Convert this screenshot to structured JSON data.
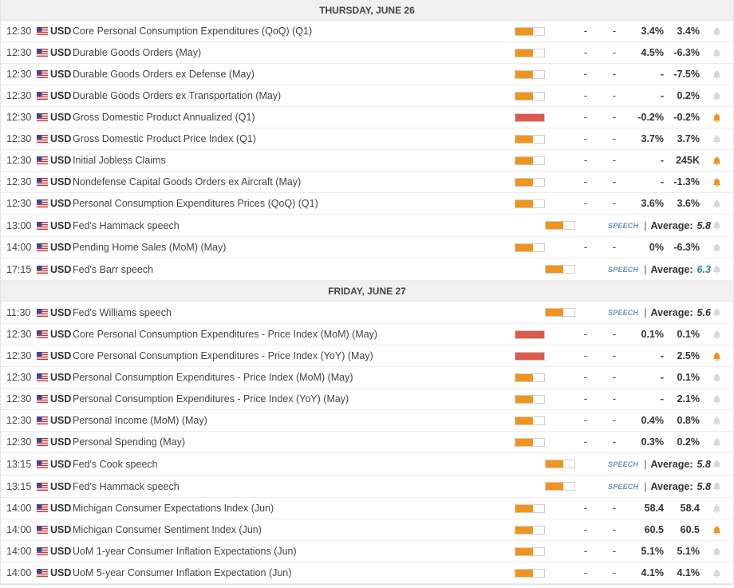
{
  "colors": {
    "impact_medium": "#f0941e",
    "impact_high": "#dc5a4c",
    "bell_active": "#f0941e",
    "bell_inactive": "#d8d8d8",
    "speech_tag": "#6a93b8",
    "teal_value": "#2a8a8a"
  },
  "icons": {
    "flag": "us-flag-icon",
    "bell": "bell-icon"
  },
  "days": [
    {
      "title": "THURSDAY, JUNE 26",
      "events": [
        {
          "time": "12:30",
          "currency": "USD",
          "name": "Core Personal Consumption Expenditures (QoQ) (Q1)",
          "impact": "medium",
          "actual": "-",
          "consensus": "-",
          "forecast": "3.4%",
          "previous": "3.4%",
          "alert": false
        },
        {
          "time": "12:30",
          "currency": "USD",
          "name": "Durable Goods Orders (May)",
          "impact": "medium",
          "actual": "-",
          "consensus": "-",
          "forecast": "4.5%",
          "previous": "-6.3%",
          "alert": false
        },
        {
          "time": "12:30",
          "currency": "USD",
          "name": "Durable Goods Orders ex Defense (May)",
          "impact": "medium",
          "actual": "-",
          "consensus": "-",
          "forecast": "-",
          "previous": "-7.5%",
          "alert": false
        },
        {
          "time": "12:30",
          "currency": "USD",
          "name": "Durable Goods Orders ex Transportation (May)",
          "impact": "medium",
          "actual": "-",
          "consensus": "-",
          "forecast": "-",
          "previous": "0.2%",
          "alert": false
        },
        {
          "time": "12:30",
          "currency": "USD",
          "name": "Gross Domestic Product Annualized (Q1)",
          "impact": "high",
          "actual": "-",
          "consensus": "-",
          "forecast": "-0.2%",
          "previous": "-0.2%",
          "alert": true
        },
        {
          "time": "12:30",
          "currency": "USD",
          "name": "Gross Domestic Product Price Index (Q1)",
          "impact": "medium",
          "actual": "-",
          "consensus": "-",
          "forecast": "3.7%",
          "previous": "3.7%",
          "alert": false
        },
        {
          "time": "12:30",
          "currency": "USD",
          "name": "Initial Jobless Claims",
          "impact": "medium",
          "actual": "-",
          "consensus": "-",
          "forecast": "-",
          "previous": "245K",
          "alert": true
        },
        {
          "time": "12:30",
          "currency": "USD",
          "name": "Nondefense Capital Goods Orders ex Aircraft (May)",
          "impact": "medium",
          "actual": "-",
          "consensus": "-",
          "forecast": "-",
          "previous": "-1.3%",
          "alert": true
        },
        {
          "time": "12:30",
          "currency": "USD",
          "name": "Personal Consumption Expenditures Prices (QoQ) (Q1)",
          "impact": "medium",
          "actual": "-",
          "consensus": "-",
          "forecast": "3.6%",
          "previous": "3.6%",
          "alert": false
        },
        {
          "time": "13:00",
          "currency": "USD",
          "name": "Fed's Hammack speech",
          "impact": "medium",
          "speech": true,
          "speech_tag": "SPEECH",
          "avg_label": "Average:",
          "avg_value": "5.8",
          "avg_teal": false,
          "alert": false
        },
        {
          "time": "14:00",
          "currency": "USD",
          "name": "Pending Home Sales (MoM) (May)",
          "impact": "medium",
          "actual": "-",
          "consensus": "-",
          "forecast": "0%",
          "previous": "-6.3%",
          "alert": false
        },
        {
          "time": "17:15",
          "currency": "USD",
          "name": "Fed's Barr speech",
          "impact": "medium",
          "speech": true,
          "speech_tag": "SPEECH",
          "avg_label": "Average:",
          "avg_value": "6.3",
          "avg_teal": true,
          "alert": false
        }
      ]
    },
    {
      "title": "FRIDAY, JUNE 27",
      "events": [
        {
          "time": "11:30",
          "currency": "USD",
          "name": "Fed's Williams speech",
          "impact": "medium",
          "speech": true,
          "speech_tag": "SPEECH",
          "avg_label": "Average:",
          "avg_value": "5.6",
          "avg_teal": false,
          "alert": false
        },
        {
          "time": "12:30",
          "currency": "USD",
          "name": "Core Personal Consumption Expenditures - Price Index (MoM) (May)",
          "impact": "high",
          "actual": "-",
          "consensus": "-",
          "forecast": "0.1%",
          "previous": "0.1%",
          "alert": false
        },
        {
          "time": "12:30",
          "currency": "USD",
          "name": "Core Personal Consumption Expenditures - Price Index (YoY) (May)",
          "impact": "high",
          "actual": "-",
          "consensus": "-",
          "forecast": "-",
          "previous": "2.5%",
          "alert": true
        },
        {
          "time": "12:30",
          "currency": "USD",
          "name": "Personal Consumption Expenditures - Price Index (MoM) (May)",
          "impact": "medium",
          "actual": "-",
          "consensus": "-",
          "forecast": "-",
          "previous": "0.1%",
          "alert": false
        },
        {
          "time": "12:30",
          "currency": "USD",
          "name": "Personal Consumption Expenditures - Price Index (YoY) (May)",
          "impact": "medium",
          "actual": "-",
          "consensus": "-",
          "forecast": "-",
          "previous": "2.1%",
          "alert": false
        },
        {
          "time": "12:30",
          "currency": "USD",
          "name": "Personal Income (MoM) (May)",
          "impact": "medium",
          "actual": "-",
          "consensus": "-",
          "forecast": "0.4%",
          "previous": "0.8%",
          "alert": false
        },
        {
          "time": "12:30",
          "currency": "USD",
          "name": "Personal Spending (May)",
          "impact": "medium",
          "actual": "-",
          "consensus": "-",
          "forecast": "0.3%",
          "previous": "0.2%",
          "alert": false
        },
        {
          "time": "13:15",
          "currency": "USD",
          "name": "Fed's Cook speech",
          "impact": "medium",
          "speech": true,
          "speech_tag": "SPEECH",
          "avg_label": "Average:",
          "avg_value": "5.8",
          "avg_teal": false,
          "alert": false
        },
        {
          "time": "13:15",
          "currency": "USD",
          "name": "Fed's Hammack speech",
          "impact": "medium",
          "speech": true,
          "speech_tag": "SPEECH",
          "avg_label": "Average:",
          "avg_value": "5.8",
          "avg_teal": false,
          "alert": false
        },
        {
          "time": "14:00",
          "currency": "USD",
          "name": "Michigan Consumer Expectations Index (Jun)",
          "impact": "medium",
          "actual": "-",
          "consensus": "-",
          "forecast": "58.4",
          "previous": "58.4",
          "alert": false
        },
        {
          "time": "14:00",
          "currency": "USD",
          "name": "Michigan Consumer Sentiment Index (Jun)",
          "impact": "medium",
          "actual": "-",
          "consensus": "-",
          "forecast": "60.5",
          "previous": "60.5",
          "alert": true
        },
        {
          "time": "14:00",
          "currency": "USD",
          "name": "UoM 1-year Consumer Inflation Expectations (Jun)",
          "impact": "medium",
          "actual": "-",
          "consensus": "-",
          "forecast": "5.1%",
          "previous": "5.1%",
          "alert": false
        },
        {
          "time": "14:00",
          "currency": "USD",
          "name": "UoM 5-year Consumer Inflation Expectation (Jun)",
          "impact": "medium",
          "actual": "-",
          "consensus": "-",
          "forecast": "4.1%",
          "previous": "4.1%",
          "alert": false
        }
      ]
    }
  ]
}
